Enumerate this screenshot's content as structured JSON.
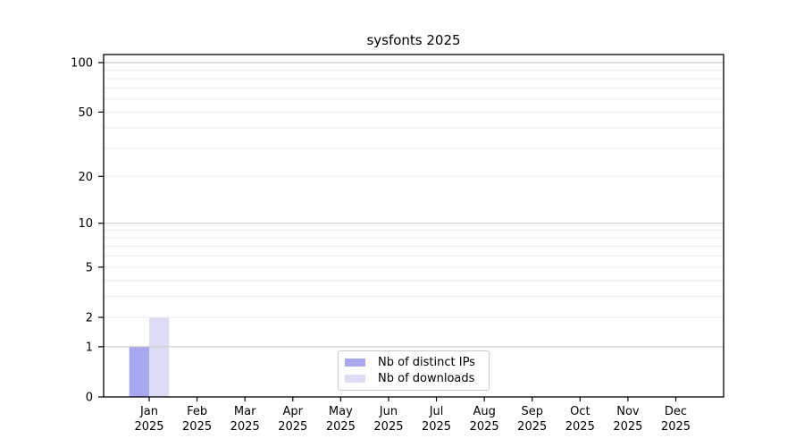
{
  "window": {
    "background": "#ffffff"
  },
  "chart_data": {
    "type": "bar",
    "title": "sysfonts 2025",
    "categories": [
      {
        "month": "Jan",
        "year": "2025"
      },
      {
        "month": "Feb",
        "year": "2025"
      },
      {
        "month": "Mar",
        "year": "2025"
      },
      {
        "month": "Apr",
        "year": "2025"
      },
      {
        "month": "May",
        "year": "2025"
      },
      {
        "month": "Jun",
        "year": "2025"
      },
      {
        "month": "Jul",
        "year": "2025"
      },
      {
        "month": "Aug",
        "year": "2025"
      },
      {
        "month": "Sep",
        "year": "2025"
      },
      {
        "month": "Oct",
        "year": "2025"
      },
      {
        "month": "Nov",
        "year": "2025"
      },
      {
        "month": "Dec",
        "year": "2025"
      }
    ],
    "series": [
      {
        "name": "Nb of distinct IPs",
        "color": "#a8a8f0",
        "values": [
          1,
          0,
          0,
          0,
          0,
          0,
          0,
          0,
          0,
          0,
          0,
          0
        ]
      },
      {
        "name": "Nb of downloads",
        "color": "#dcdcf6",
        "values": [
          2,
          0,
          0,
          0,
          0,
          0,
          0,
          0,
          0,
          0,
          0,
          0
        ]
      }
    ],
    "y_axis": {
      "scale": "log10(1+x)",
      "labeled_ticks": [
        0,
        1,
        2,
        5,
        10,
        20,
        50,
        100
      ],
      "major_gridlines": [
        1,
        10,
        100
      ],
      "minor_gridlines": [
        2,
        3,
        4,
        5,
        6,
        7,
        8,
        9,
        20,
        30,
        40,
        50,
        60,
        70,
        80,
        90
      ],
      "range_top": 112
    },
    "grid": "horizontal",
    "legend": {
      "position": "inside-bottom-center",
      "items": [
        "Nb of distinct IPs",
        "Nb of downloads"
      ]
    }
  },
  "colors": {
    "frame": "#000000",
    "major_grid": "#c9c9c9",
    "minor_grid": "#ededed",
    "tick": "#000000",
    "text": "#000000",
    "legend_border": "#c9c9c9"
  }
}
